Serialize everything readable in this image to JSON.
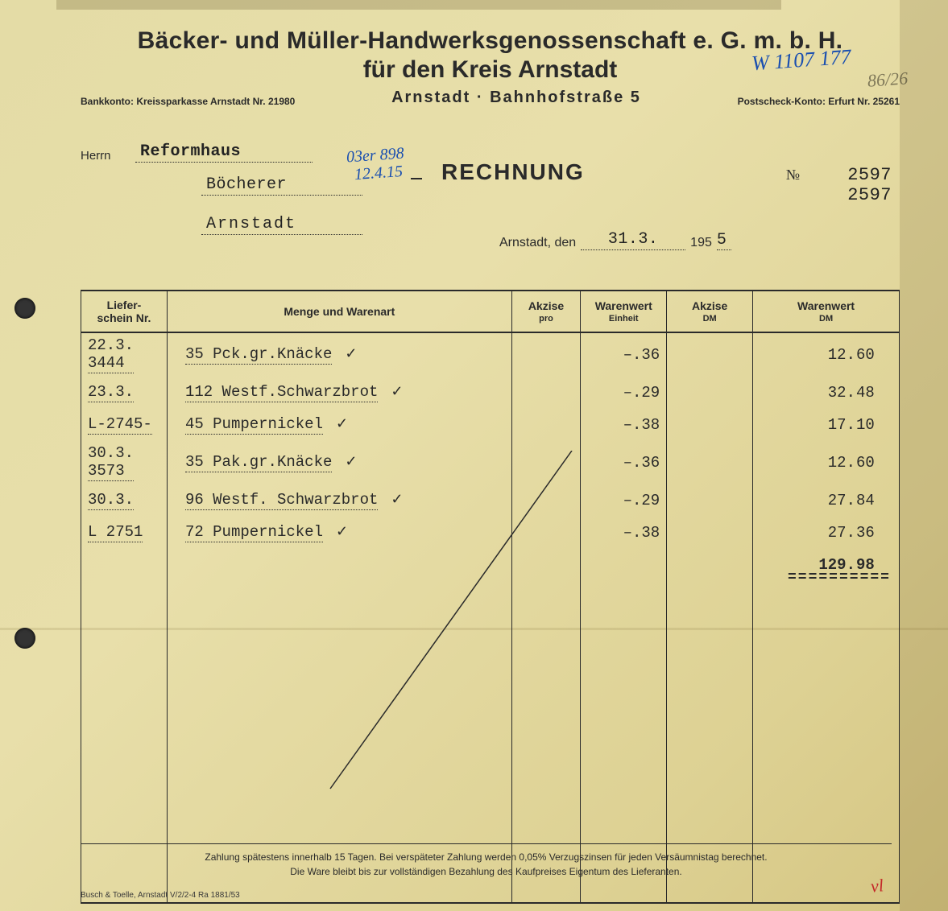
{
  "header": {
    "title_line1": "Bäcker- und Müller-Handwerksgenossenschaft e. G. m. b. H.",
    "title_line2": "für den Kreis Arnstadt",
    "bank_left": "Bankkonto: Kreissparkasse Arnstadt Nr. 21980",
    "address_center": "Arnstadt · Bahnhofstraße 5",
    "postcheck_right": "Postscheck-Konto: Erfurt Nr. 25261"
  },
  "scribbles": {
    "blue_top_right": "W 1107 177",
    "pencil_top_right": "86/26",
    "blue_mid_1": "03er 898",
    "blue_mid_2": "12.4.15",
    "red_bottom": "vl"
  },
  "recipient": {
    "herrn_label": "Herrn",
    "name": "Reformhaus",
    "line2": "Böcherer",
    "city": "Arnstadt"
  },
  "invoice_meta": {
    "rechnung_label": "RECHNUNG",
    "nr_label": "№",
    "nr_1": "2597",
    "nr_2": "2597",
    "place": "Arnstadt, den",
    "date": "31.3.",
    "year_prefix": "195",
    "year_last": "5"
  },
  "table": {
    "columns": {
      "c1": "Liefer-\nschein Nr.",
      "c2": "Menge und Warenart",
      "c3": "Akzise",
      "c3sub": "pro",
      "c4": "Warenwert",
      "c4sub": "Einheit",
      "c5": "Akzise",
      "c5sub": "DM",
      "c6": "Warenwert",
      "c6sub": "DM"
    },
    "rows": [
      {
        "ls": "22.3.\n3444",
        "desc": "35 Pck.gr.Knäcke",
        "check": "✓",
        "unit": "–.36",
        "value_int": "12",
        "value_dec": "60"
      },
      {
        "ls": "23.3.",
        "desc": "112 Westf.Schwarzbrot",
        "check": "✓",
        "unit": "–.29",
        "value_int": "32",
        "value_dec": "48"
      },
      {
        "ls": "L-2745-",
        "desc": "45 Pumpernickel",
        "check": "✓",
        "unit": "–.38",
        "value_int": "17",
        "value_dec": "10"
      },
      {
        "ls": "30.3.\n3573",
        "desc": "35 Pak.gr.Knäcke",
        "check": "✓",
        "unit": "–.36",
        "value_int": "12",
        "value_dec": "60"
      },
      {
        "ls": "30.3.",
        "desc": "96 Westf. Schwarzbrot",
        "check": "✓",
        "unit": "–.29",
        "value_int": "27",
        "value_dec": "84"
      },
      {
        "ls": "L 2751",
        "desc": "72 Pumpernickel",
        "check": "✓",
        "unit": "–.38",
        "value_int": "27",
        "value_dec": "36"
      }
    ],
    "total": {
      "value_int": "129",
      "value_dec": "98"
    },
    "blank_rows": 10
  },
  "footer": {
    "line1": "Zahlung spätestens innerhalb 15 Tagen. Bei verspäteter Zahlung werden 0,05% Verzugszinsen für jeden Versäumnistag berechnet.",
    "line2": "Die Ware bleibt bis zur vollständigen Bezahlung des Kaufpreises Eigentum des Lieferanten.",
    "imprint": "Busch & Toelle, Arnstadt   V/2/2-4  Ra 1881/53"
  },
  "colors": {
    "ink": "#2a2a2a",
    "blue_pen": "#1a4fb0",
    "red_pen": "#c42a2a",
    "paper_a": "#e4dca6",
    "paper_b": "#d5c582"
  }
}
